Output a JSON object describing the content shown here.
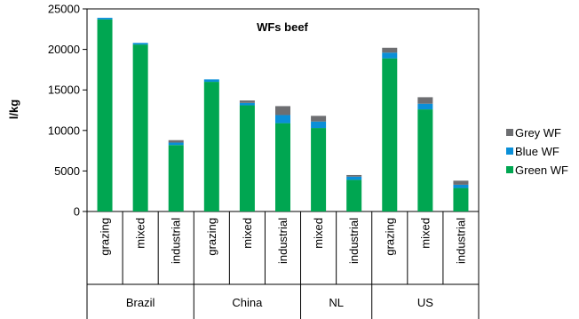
{
  "chart_data": {
    "type": "bar",
    "stacked": true,
    "title": "WFs beef",
    "ylabel": "l/kg",
    "xlabel": "",
    "ylim": [
      0,
      25000
    ],
    "yticks": [
      0,
      5000,
      10000,
      15000,
      20000,
      25000
    ],
    "grid": false,
    "legend_position": "right",
    "groups": [
      {
        "name": "Brazil",
        "categories": [
          "grazing",
          "mixed",
          "industrial"
        ]
      },
      {
        "name": "China",
        "categories": [
          "grazing",
          "mixed",
          "industrial"
        ]
      },
      {
        "name": "NL",
        "categories": [
          "mixed",
          "industrial"
        ]
      },
      {
        "name": "US",
        "categories": [
          "grazing",
          "mixed",
          "industrial"
        ]
      }
    ],
    "series": [
      {
        "name": "Green WF",
        "color": "#00a651",
        "values": [
          23700,
          20600,
          8200,
          16000,
          13100,
          10900,
          10300,
          3900,
          18900,
          12600,
          2900
        ]
      },
      {
        "name": "Blue WF",
        "color": "#0a8fd8",
        "values": [
          200,
          200,
          300,
          300,
          300,
          1000,
          800,
          400,
          700,
          700,
          400
        ]
      },
      {
        "name": "Grey WF",
        "color": "#6d6e71",
        "values": [
          0,
          0,
          300,
          0,
          300,
          1100,
          700,
          200,
          600,
          800,
          500
        ]
      }
    ],
    "legend_order": [
      "Grey WF",
      "Blue WF",
      "Green WF"
    ]
  }
}
